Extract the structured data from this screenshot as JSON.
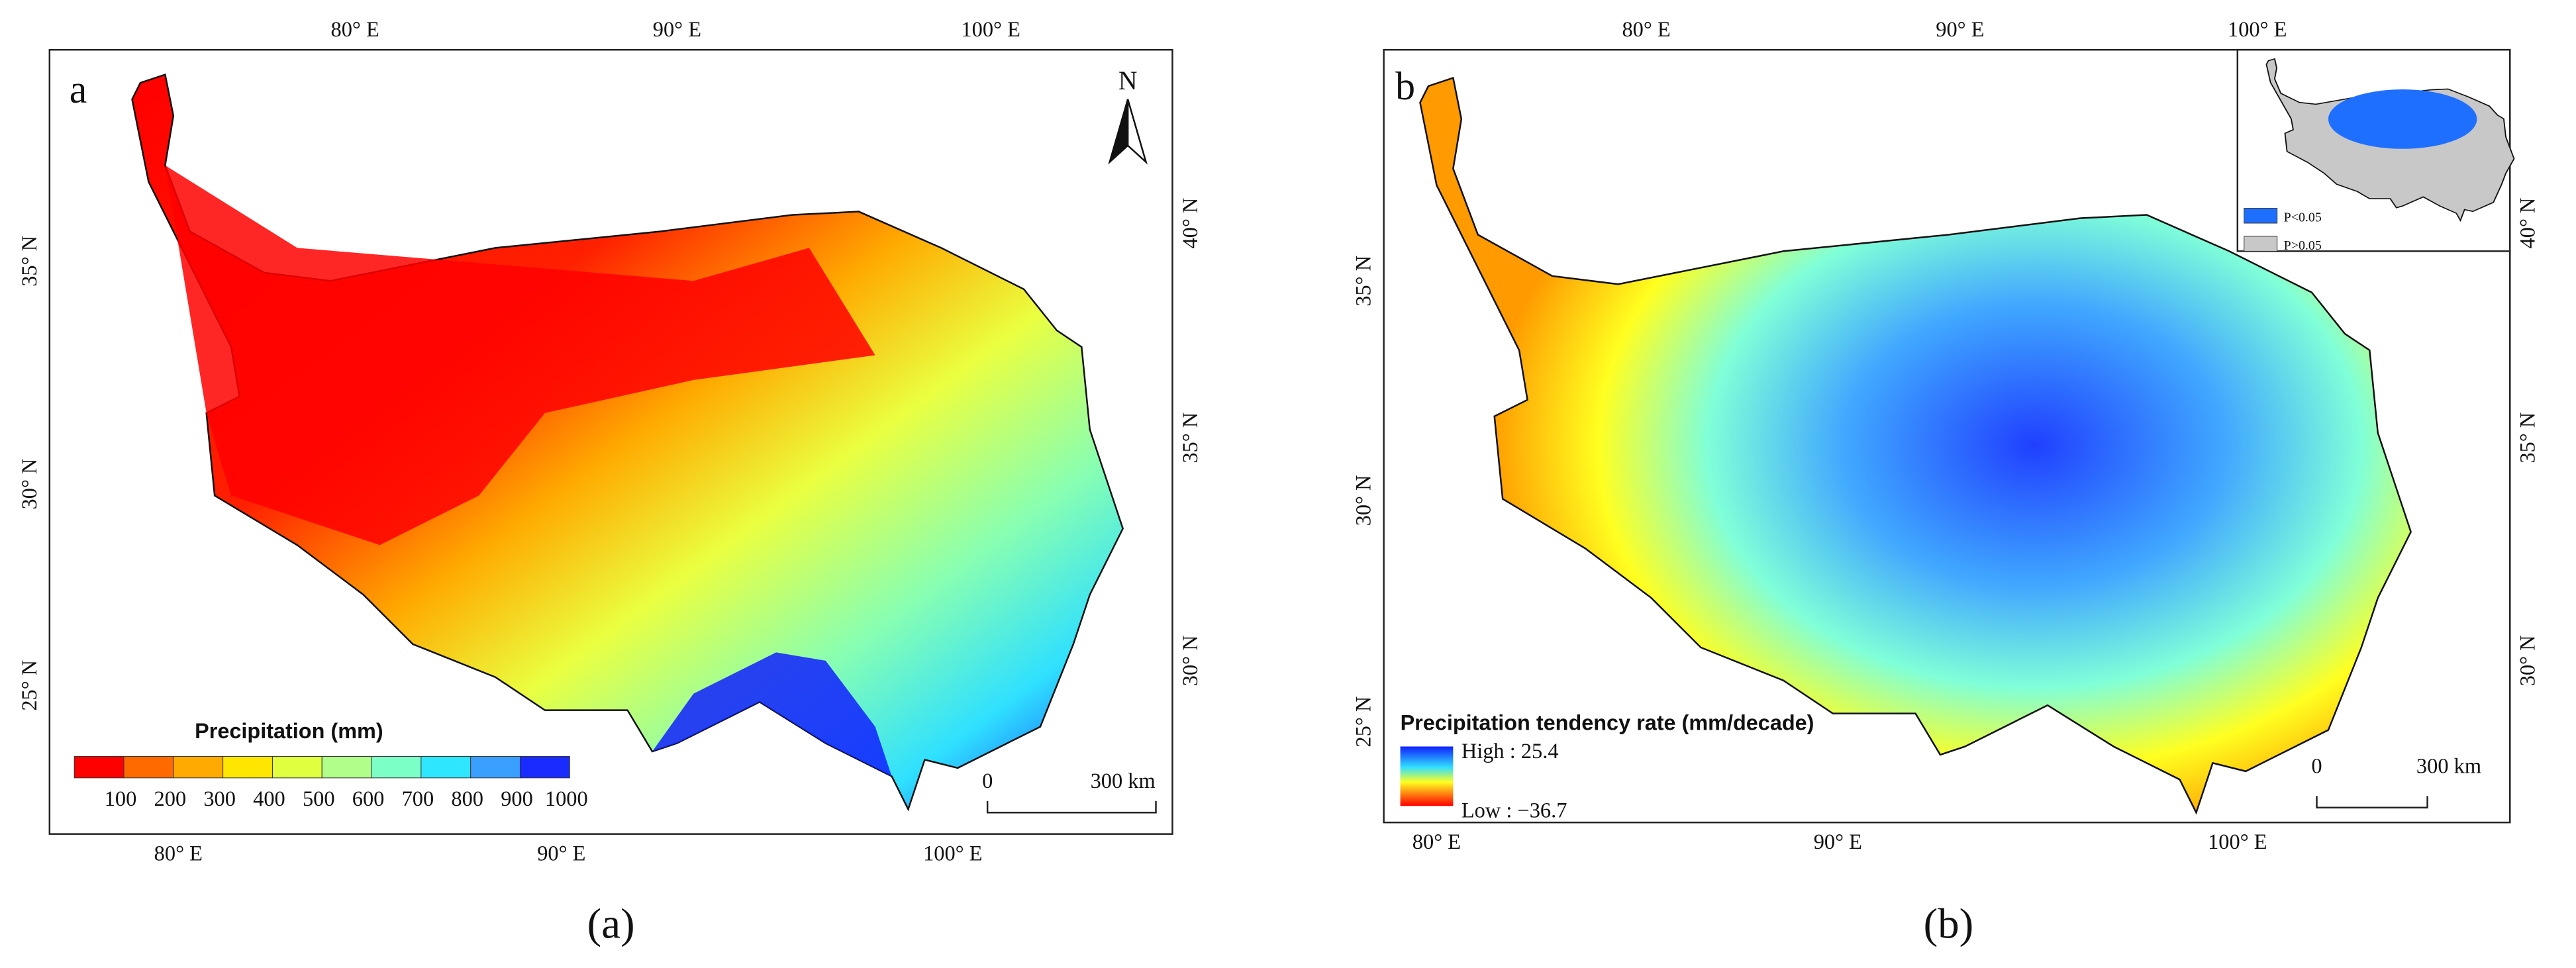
{
  "panels": [
    {
      "letter": "a",
      "top_ticks": [
        "80° E",
        "90° E",
        "100° E"
      ],
      "bottom_ticks": [
        "80° E",
        "90° E",
        "100° E"
      ],
      "left_ticks": [
        "35° N",
        "30° N",
        "25° N"
      ],
      "right_ticks": [
        "40° N",
        "35° N",
        "30° N"
      ],
      "north": "N",
      "legend": {
        "title": "Precipitation (mm)",
        "classes": [
          {
            "label": "100",
            "color": "#ff0000"
          },
          {
            "label": "200",
            "color": "#ff6a00"
          },
          {
            "label": "300",
            "color": "#ffaa00"
          },
          {
            "label": "400",
            "color": "#ffe600"
          },
          {
            "label": "500",
            "color": "#dfff3f"
          },
          {
            "label": "600",
            "color": "#b0ff8a"
          },
          {
            "label": "700",
            "color": "#7dffc8"
          },
          {
            "label": "800",
            "color": "#2fe6ff"
          },
          {
            "label": "900",
            "color": "#3aa0ff"
          },
          {
            "label": "1000",
            "color": "#1a2bff"
          }
        ]
      },
      "scale": {
        "start": "0",
        "end": "300 km"
      },
      "caption": "(a)"
    },
    {
      "letter": "b",
      "top_ticks": [
        "80° E",
        "90° E",
        "100° E"
      ],
      "bottom_ticks": [
        "80° E",
        "90° E",
        "100° E"
      ],
      "left_ticks": [
        "35° N",
        "30° N",
        "25° N"
      ],
      "right_ticks": [
        "40° N",
        "35° N",
        "30° N"
      ],
      "legend": {
        "title": "Precipitation tendency rate (mm/decade)",
        "high": "High : 25.4",
        "low": "Low : −36.7"
      },
      "inset": {
        "items": [
          {
            "label": "P<0.05",
            "color": "#1f6fff"
          },
          {
            "label": "P>0.05",
            "color": "#c8c8c8"
          }
        ]
      },
      "scale": {
        "start": "0",
        "end": "300 km"
      },
      "caption": "(b)"
    }
  ]
}
